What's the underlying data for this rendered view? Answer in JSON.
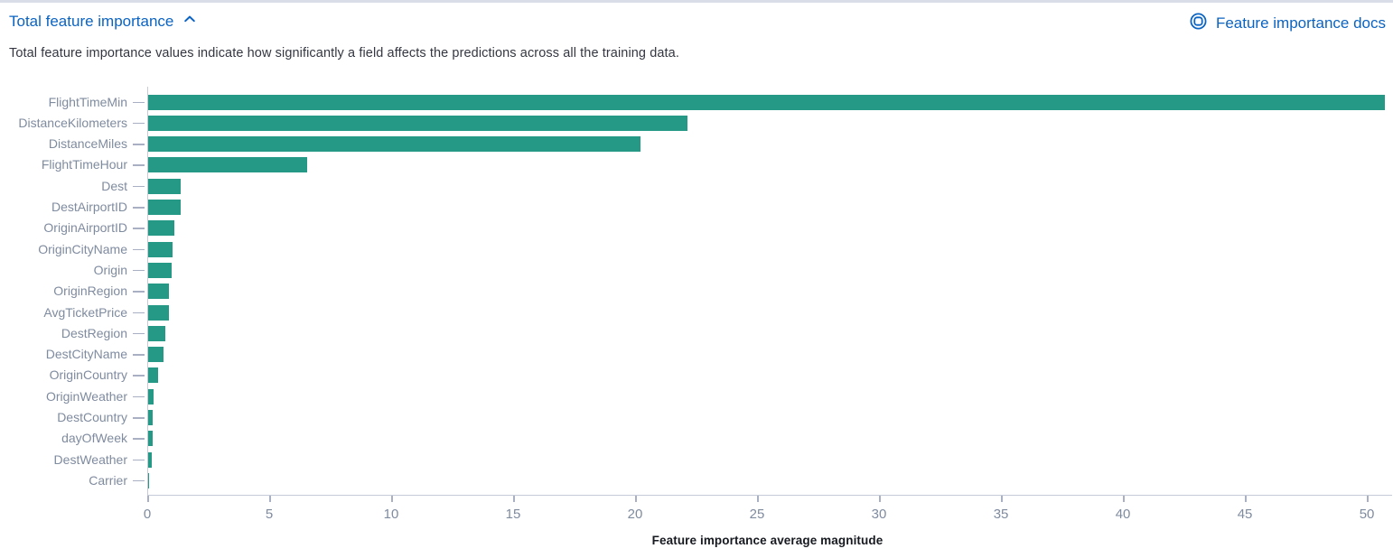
{
  "header": {
    "title": "Total feature importance",
    "collapse_icon": "chevron-up",
    "docs_link_label": "Feature importance docs",
    "docs_link_icon": "lifebuoy-docs"
  },
  "description": "Total feature importance values indicate how significantly a field affects the predictions across all the training data.",
  "colors": {
    "bar": "#269986",
    "link": "#0b63c2",
    "axis_line": "#c6cbd9",
    "tick": "#a9b0c3",
    "axis_text": "#7f8b9f",
    "body_text": "#343741"
  },
  "chart_data": {
    "type": "bar",
    "orientation": "horizontal",
    "title": "",
    "xlabel": "Feature importance average magnitude",
    "ylabel": "",
    "categories": [
      "FlightTimeMin",
      "DistanceKilometers",
      "DistanceMiles",
      "FlightTimeHour",
      "Dest",
      "DestAirportID",
      "OriginAirportID",
      "OriginCityName",
      "Origin",
      "OriginRegion",
      "AvgTicketPrice",
      "DestRegion",
      "DestCityName",
      "OriginCountry",
      "OriginWeather",
      "DestCountry",
      "dayOfWeek",
      "DestWeather",
      "Carrier"
    ],
    "values": [
      50.7,
      22.1,
      20.2,
      6.5,
      1.34,
      1.32,
      1.07,
      1.0,
      0.96,
      0.87,
      0.85,
      0.72,
      0.63,
      0.42,
      0.21,
      0.2,
      0.19,
      0.15,
      0.04
    ],
    "xlim": [
      0,
      50.85
    ],
    "xticks": [
      0,
      5,
      10,
      15,
      20,
      25,
      30,
      35,
      40,
      45,
      50
    ],
    "grid": false,
    "legend": false
  }
}
